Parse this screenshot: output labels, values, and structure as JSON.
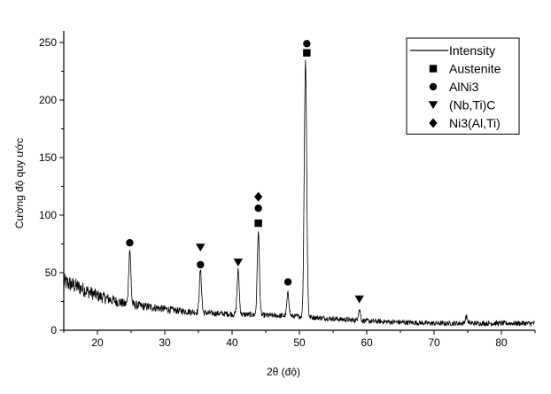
{
  "chart_data": {
    "type": "line",
    "title": "",
    "xlabel": "2θ (độ)",
    "ylabel": "Cường độ quy ước",
    "xlim": [
      15,
      85
    ],
    "ylim": [
      0,
      260
    ],
    "xticks": [
      20,
      30,
      40,
      50,
      60,
      70,
      80
    ],
    "yticks": [
      0,
      50,
      100,
      150,
      200,
      250
    ],
    "grid": false,
    "legend_position": "top-right",
    "series": [
      {
        "name": "Intensity",
        "color": "#000000",
        "baseline": [
          [
            15,
            42
          ],
          [
            17,
            38
          ],
          [
            20,
            30
          ],
          [
            24,
            23
          ],
          [
            28,
            20
          ],
          [
            32,
            17
          ],
          [
            36,
            15
          ],
          [
            40,
            14
          ],
          [
            45,
            13
          ],
          [
            50,
            12
          ],
          [
            55,
            10
          ],
          [
            60,
            8
          ],
          [
            65,
            7
          ],
          [
            70,
            6
          ],
          [
            75,
            6
          ],
          [
            80,
            6
          ],
          [
            85,
            6
          ]
        ],
        "peaks": [
          {
            "x": 24.8,
            "y": 70
          },
          {
            "x": 35.3,
            "y": 52
          },
          {
            "x": 40.9,
            "y": 52
          },
          {
            "x": 43.9,
            "y": 85
          },
          {
            "x": 48.3,
            "y": 32
          },
          {
            "x": 50.9,
            "y": 235
          },
          {
            "x": 58.9,
            "y": 18
          },
          {
            "x": 74.8,
            "y": 12
          }
        ]
      }
    ],
    "legend": [
      {
        "label": "Intensity",
        "marker": "line"
      },
      {
        "label": "Austenite",
        "marker": "square"
      },
      {
        "label": "AlNi3",
        "marker": "circle"
      },
      {
        "label": "(Nb,Ti)C",
        "marker": "triangle-down"
      },
      {
        "label": "Ni3(Al,Ti)",
        "marker": "diamond"
      }
    ],
    "annotations": [
      {
        "x": 24.8,
        "y": 76,
        "marker": "circle"
      },
      {
        "x": 35.3,
        "y": 72,
        "marker": "triangle-down"
      },
      {
        "x": 35.3,
        "y": 57,
        "marker": "circle"
      },
      {
        "x": 40.9,
        "y": 59,
        "marker": "triangle-down"
      },
      {
        "x": 43.9,
        "y": 116,
        "marker": "diamond"
      },
      {
        "x": 43.9,
        "y": 106,
        "marker": "circle"
      },
      {
        "x": 43.9,
        "y": 93,
        "marker": "square"
      },
      {
        "x": 48.3,
        "y": 42,
        "marker": "circle"
      },
      {
        "x": 51.1,
        "y": 249,
        "marker": "circle"
      },
      {
        "x": 51.1,
        "y": 241,
        "marker": "square"
      },
      {
        "x": 58.9,
        "y": 27,
        "marker": "triangle-down"
      }
    ]
  }
}
